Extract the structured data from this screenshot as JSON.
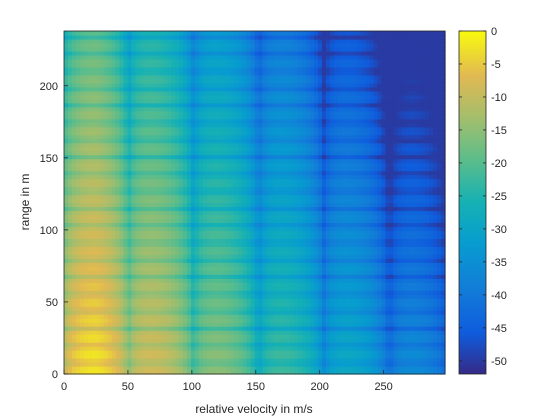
{
  "chart_data": {
    "type": "heatmap",
    "title": "",
    "xlabel": "relative velocity in m/s",
    "ylabel": "range in m",
    "xlim": [
      0,
      298
    ],
    "ylim": [
      0,
      238
    ],
    "xticks": [
      0,
      50,
      100,
      150,
      200,
      250
    ],
    "yticks": [
      0,
      50,
      100,
      150,
      200
    ],
    "colorbar": {
      "range": [
        -52,
        0
      ],
      "ticks": [
        0,
        -5,
        -10,
        -15,
        -20,
        -25,
        -30,
        -35,
        -40,
        -45,
        -50
      ],
      "colormap": "parula"
    },
    "grid": {
      "velocity_period": 51,
      "velocity_first_peak": 25,
      "range_period": 11.9,
      "range_first_peak": 14,
      "peak_db": 0,
      "floor_db": -50,
      "velocity_decay_db_per_mps": 0.042,
      "range_decay_db_per_m": 0.04
    }
  }
}
